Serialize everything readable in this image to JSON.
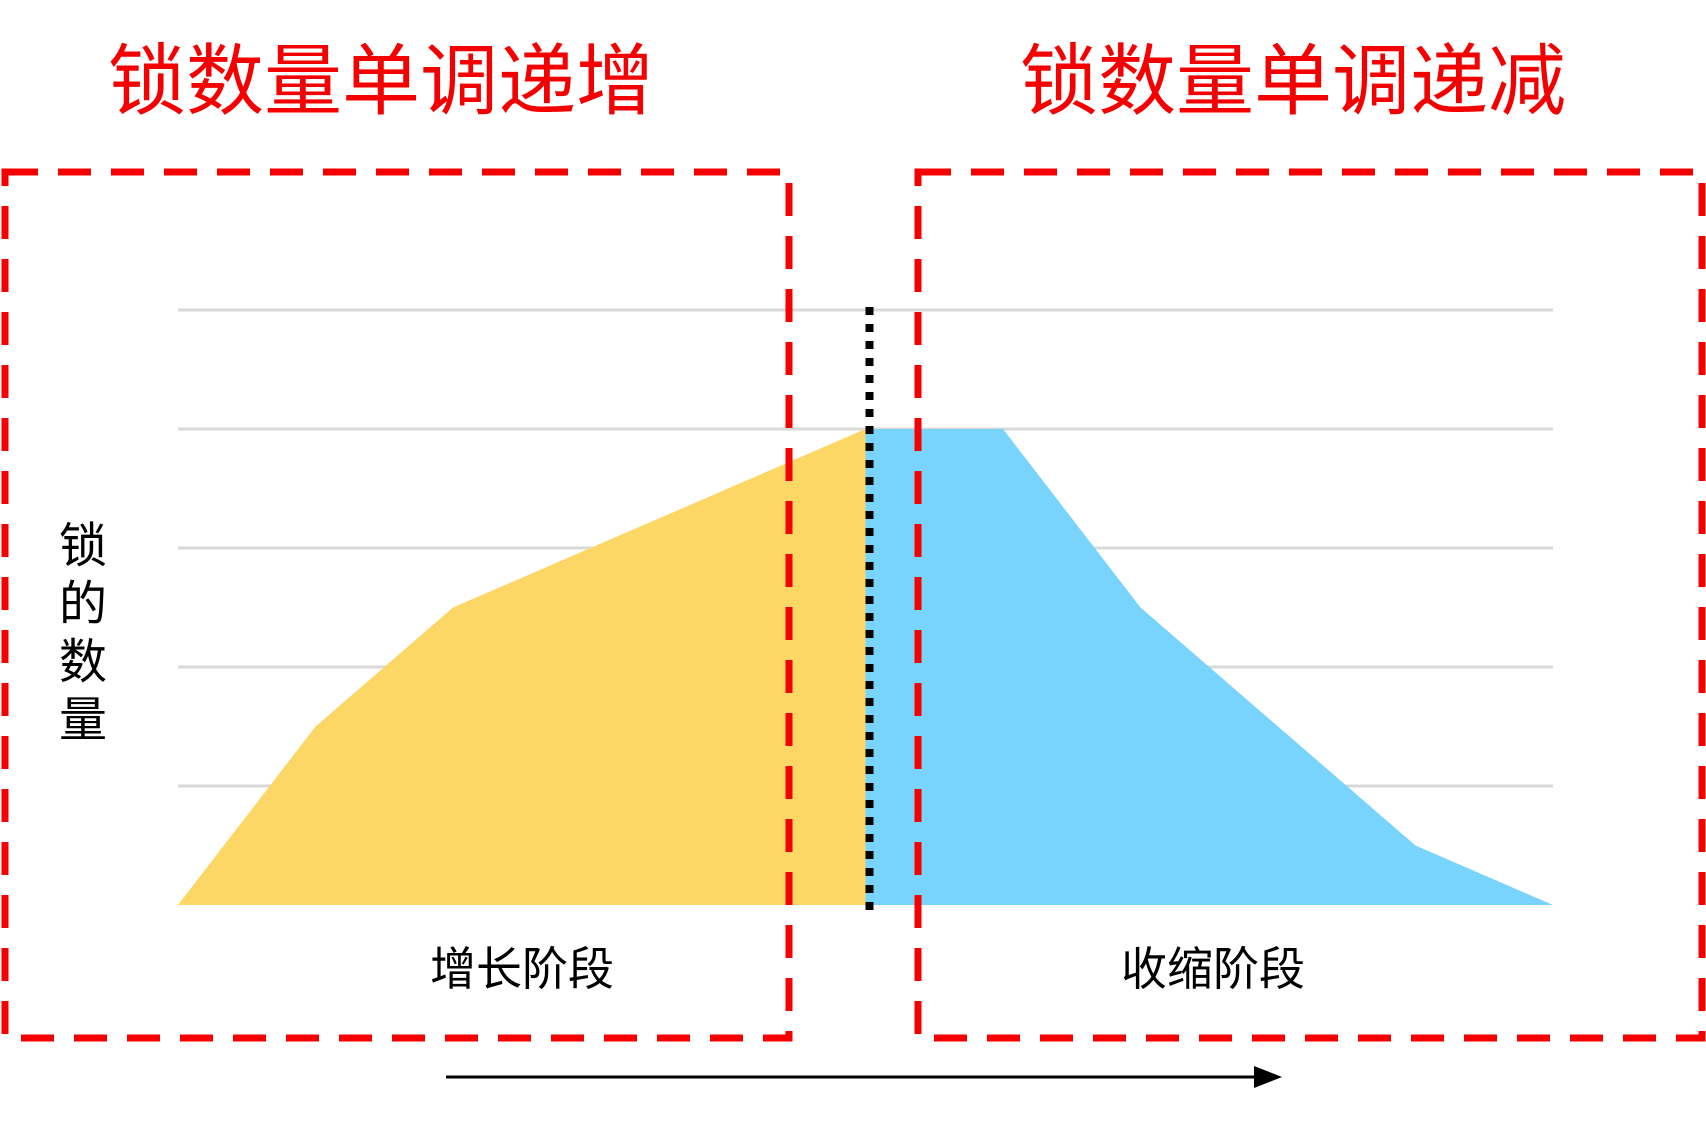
{
  "chart_data": {
    "type": "area",
    "title": "",
    "xlabel": "",
    "ylabel": "锁的数量",
    "ylim": [
      0,
      5
    ],
    "grid": true,
    "x": [
      0,
      1,
      2,
      3,
      4,
      5,
      6,
      7,
      8,
      9,
      10
    ],
    "series": [
      {
        "x": [
          0,
          1,
          2,
          3,
          4,
          5
        ],
        "values": [
          0,
          1.5,
          2.5,
          3.0,
          3.5,
          4.0
        ],
        "color": "#fcd766"
      },
      {
        "x": [
          5,
          6,
          7,
          8,
          9,
          10
        ],
        "values": [
          4.0,
          4.0,
          2.5,
          1.5,
          0.5,
          0.0
        ],
        "color": "#78d4fd"
      }
    ],
    "boundary_x": 5,
    "phase_labels": [
      "增长阶段",
      "收缩阶段"
    ],
    "phase_titles": [
      "锁数量单调递增",
      "锁数量单调递减"
    ]
  },
  "colors": {
    "title": "#f40000",
    "dashed_box": "#f40000",
    "grid": "#d9d9d9",
    "boundary": "#000000",
    "arrow": "#000000"
  },
  "icons": {
    "time-arrow": "arrow-right-icon"
  }
}
